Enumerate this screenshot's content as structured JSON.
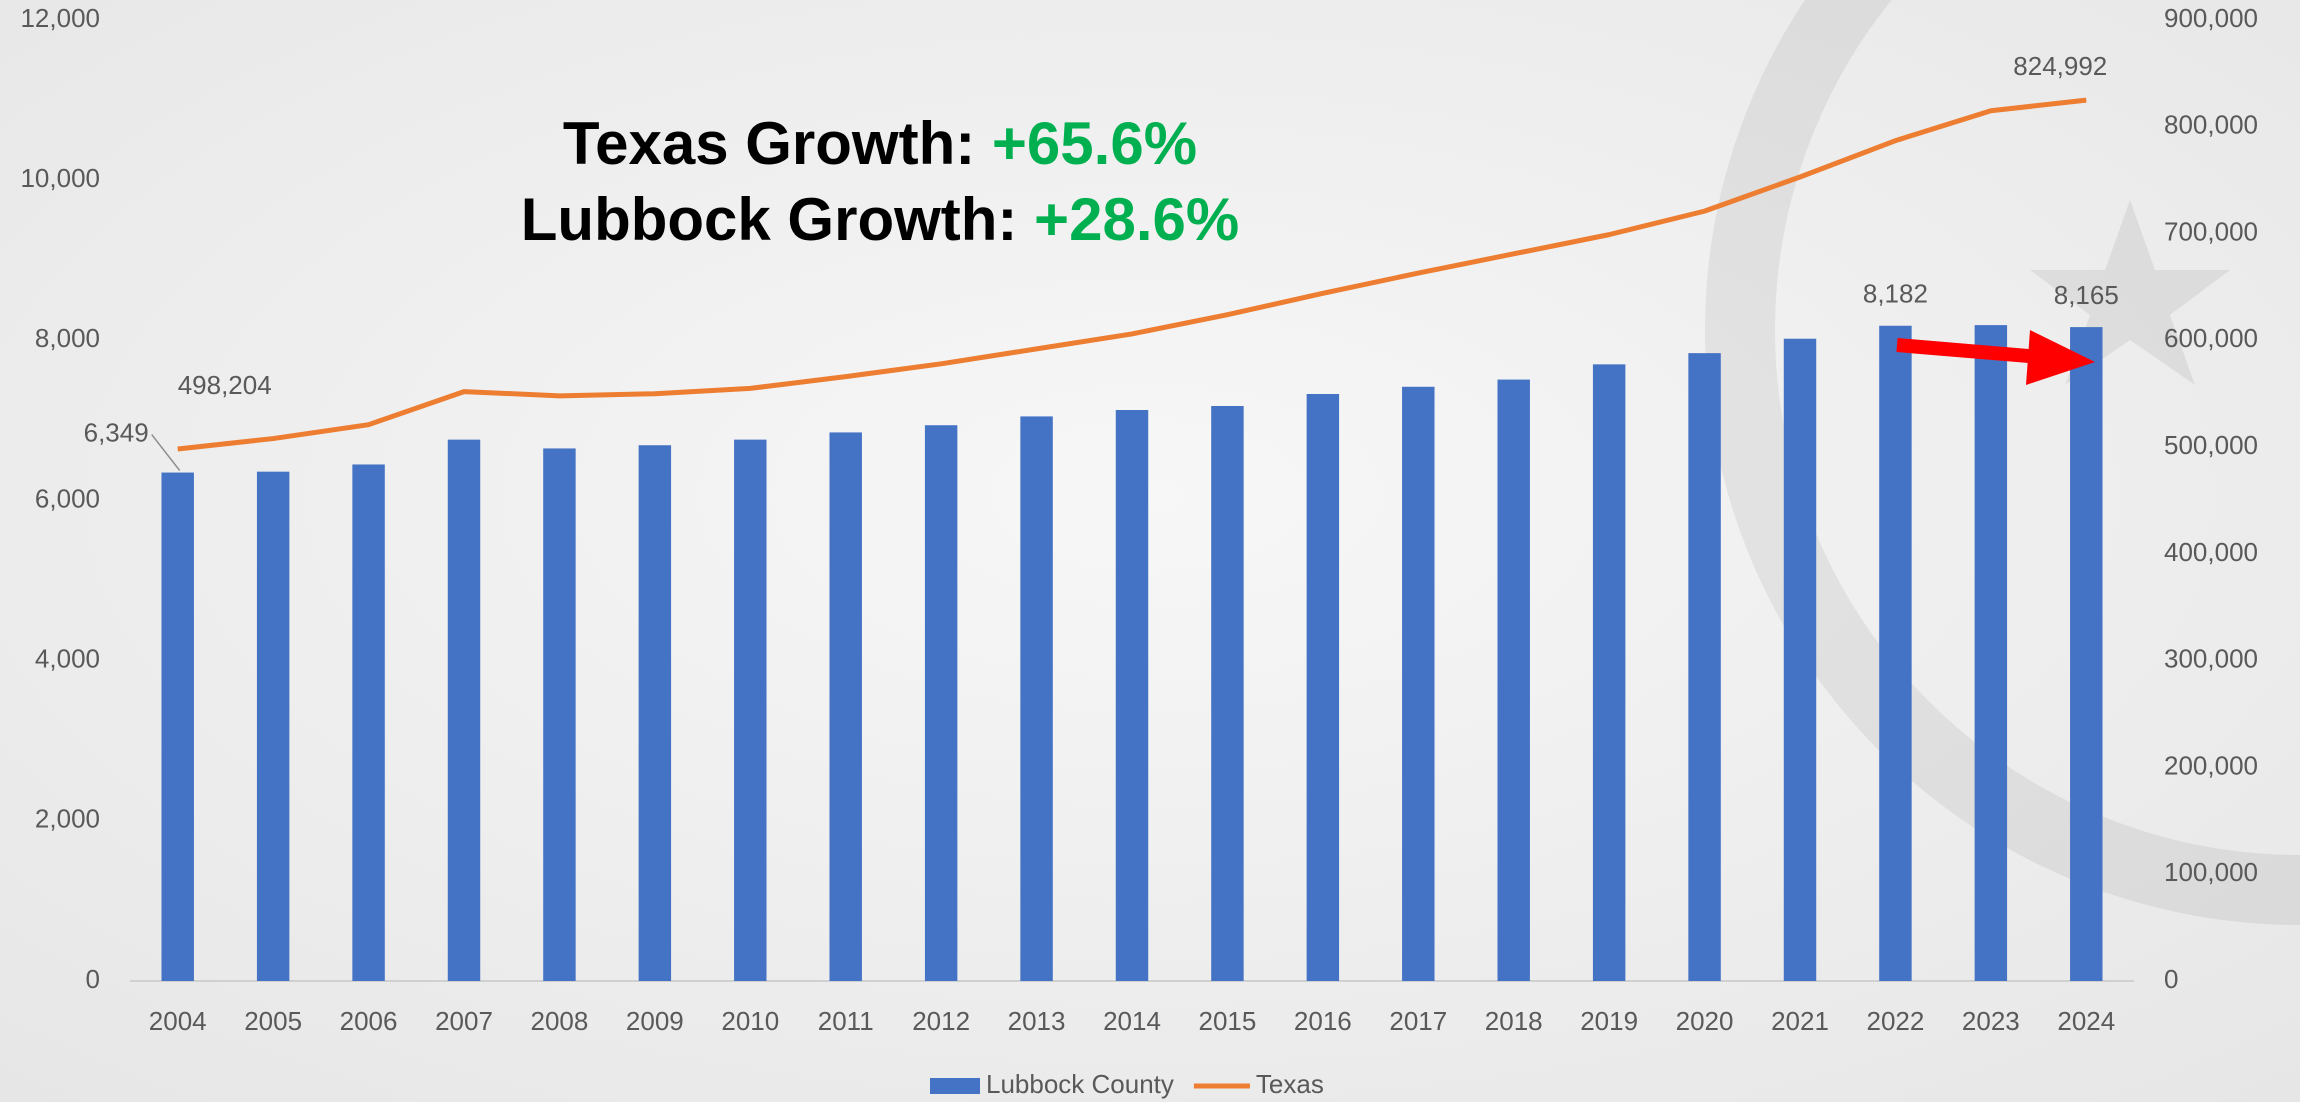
{
  "chart_data": {
    "type": "bar_line",
    "annotations": [
      {
        "label": "Texas Growth: ",
        "value": "+65.6%"
      },
      {
        "label": "Lubbock Growth: ",
        "value": "+28.6%"
      }
    ],
    "categories": [
      "2004",
      "2005",
      "2006",
      "2007",
      "2008",
      "2009",
      "2010",
      "2011",
      "2012",
      "2013",
      "2014",
      "2015",
      "2016",
      "2017",
      "2018",
      "2019",
      "2020",
      "2021",
      "2022",
      "2023",
      "2024"
    ],
    "series": [
      {
        "name": "Lubbock County",
        "type": "bar",
        "color": "#4472c4",
        "values": [
          6349,
          6360,
          6450,
          6760,
          6650,
          6690,
          6760,
          6850,
          6940,
          7050,
          7130,
          7180,
          7330,
          7420,
          7510,
          7700,
          7840,
          8020,
          8182,
          8190,
          8165
        ],
        "value_labels": [
          "6,349",
          null,
          null,
          null,
          null,
          null,
          null,
          null,
          null,
          null,
          null,
          null,
          null,
          null,
          null,
          null,
          null,
          null,
          "8,182",
          null,
          "8,165"
        ]
      },
      {
        "name": "Texas",
        "type": "line",
        "axis": "y2",
        "color": "#ed7d31",
        "values": [
          498204,
          508000,
          521000,
          552000,
          548000,
          550000,
          555000,
          566000,
          578000,
          592000,
          606000,
          624000,
          644000,
          663000,
          681000,
          699000,
          721000,
          753000,
          787000,
          815000,
          824992
        ],
        "value_labels": [
          "498,204",
          null,
          null,
          null,
          null,
          null,
          null,
          null,
          null,
          null,
          null,
          null,
          null,
          null,
          null,
          null,
          null,
          null,
          null,
          null,
          "824,992"
        ]
      }
    ],
    "ylim": [
      0,
      12000
    ],
    "yticks": [
      0,
      {
        "value": 2000,
        "label": "2,000"
      },
      {
        "value": 4000,
        "label": "4,000"
      },
      {
        "value": 6000,
        "label": "6,000"
      },
      {
        "value": 8000,
        "label": "8,000"
      },
      {
        "value": 10000,
        "label": "10,000"
      },
      {
        "value": 12000,
        "label": "12,000"
      }
    ],
    "y2lim": [
      0,
      900000
    ],
    "y2ticks": [
      0,
      {
        "value": 100000,
        "label": "100,000"
      },
      {
        "value": 200000,
        "label": "200,000"
      },
      {
        "value": 300000,
        "label": "300,000"
      },
      {
        "value": 400000,
        "label": "400,000"
      },
      {
        "value": 500000,
        "label": "500,000"
      },
      {
        "value": 600000,
        "label": "600,000"
      },
      {
        "value": 700000,
        "label": "700,000"
      },
      {
        "value": 800000,
        "label": "800,000"
      },
      {
        "value": 900000,
        "label": "900,000"
      }
    ],
    "legend": "bottom"
  }
}
